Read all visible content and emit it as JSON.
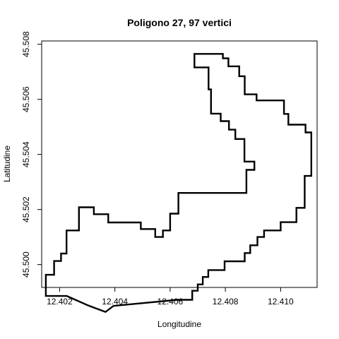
{
  "chart_data": {
    "type": "line",
    "title": "Poligono 27, 97 vertici",
    "xlabel": "Longitudine",
    "ylabel": "Latitudine",
    "xlim": [
      12.40135,
      12.41132
    ],
    "ylim": [
      45.49917,
      45.50812
    ],
    "xticks": [
      12.402,
      12.404,
      12.406,
      12.408,
      12.41
    ],
    "xtick_labels": [
      "12.402",
      "12.404",
      "12.406",
      "12.408",
      "12.410"
    ],
    "yticks": [
      45.5,
      45.502,
      45.504,
      45.506,
      45.508
    ],
    "ytick_labels": [
      "45.500",
      "45.502",
      "45.504",
      "45.506",
      "45.508"
    ],
    "grid": false,
    "legend": "none",
    "line_color": "#000000",
    "series": [
      {
        "closed": true,
        "x": [
          12.40688,
          12.40791,
          12.40791,
          12.40811,
          12.40811,
          12.4085,
          12.4085,
          12.4087,
          12.4087,
          12.40913,
          12.40913,
          12.41012,
          12.41012,
          12.41028,
          12.41028,
          12.4109,
          12.4109,
          12.41111,
          12.41111,
          12.41087,
          12.41087,
          12.41057,
          12.41057,
          12.41,
          12.41,
          12.4094,
          12.4094,
          12.40916,
          12.40916,
          12.4089,
          12.4089,
          12.4087,
          12.4087,
          12.40797,
          12.40797,
          12.40738,
          12.40738,
          12.40718,
          12.40718,
          12.407,
          12.407,
          12.4068,
          12.4068,
          12.40627,
          12.40627,
          12.40395,
          12.40395,
          12.40366,
          12.40366,
          12.40302,
          12.40302,
          12.40226,
          12.40226,
          12.4015,
          12.4015,
          12.4018,
          12.4018,
          12.40205,
          12.40205,
          12.40225,
          12.40225,
          12.4027,
          12.4027,
          12.40324,
          12.40324,
          12.40376,
          12.40376,
          12.40494,
          12.40494,
          12.40546,
          12.40546,
          12.40574,
          12.40574,
          12.406,
          12.406,
          12.4063,
          12.4063,
          12.40876,
          12.40876,
          12.40905,
          12.40905,
          12.40869,
          12.40869,
          12.40836,
          12.40836,
          12.40813,
          12.40813,
          12.40783,
          12.40783,
          12.40748,
          12.40748,
          12.40739,
          12.40739,
          12.40688,
          12.40688,
          12.40688,
          12.40688
        ],
        "y": [
          45.50765,
          45.50765,
          45.50749,
          45.50749,
          45.5072,
          45.5072,
          45.50684,
          45.50684,
          45.50618,
          45.50618,
          45.50596,
          45.50596,
          45.50547,
          45.50547,
          45.50508,
          45.50508,
          45.5048,
          45.5048,
          45.50322,
          45.50322,
          45.50206,
          45.50206,
          45.50154,
          45.50154,
          45.50124,
          45.50124,
          45.501,
          45.501,
          45.5007,
          45.5007,
          45.50042,
          45.50042,
          45.50012,
          45.50012,
          45.4998,
          45.4998,
          45.49955,
          45.49955,
          45.49928,
          45.49928,
          45.49905,
          45.49905,
          45.49872,
          45.49872,
          45.49872,
          45.4985,
          45.4985,
          45.49828,
          45.49828,
          45.49852,
          45.49852,
          45.49886,
          45.49886,
          45.49886,
          45.49963,
          45.49963,
          45.50013,
          45.50013,
          45.5004,
          45.5004,
          45.50124,
          45.50124,
          45.50208,
          45.50208,
          45.50183,
          45.50183,
          45.50153,
          45.50153,
          45.50129,
          45.50129,
          45.501,
          45.501,
          45.50124,
          45.50124,
          45.50185,
          45.50185,
          45.5026,
          45.5026,
          45.50344,
          45.50344,
          45.50374,
          45.50374,
          45.50456,
          45.50456,
          45.5049,
          45.5049,
          45.50521,
          45.50521,
          45.50548,
          45.50548,
          45.50636,
          45.50636,
          45.50716,
          45.50716,
          45.50716,
          45.50765,
          45.50765
        ]
      }
    ]
  }
}
